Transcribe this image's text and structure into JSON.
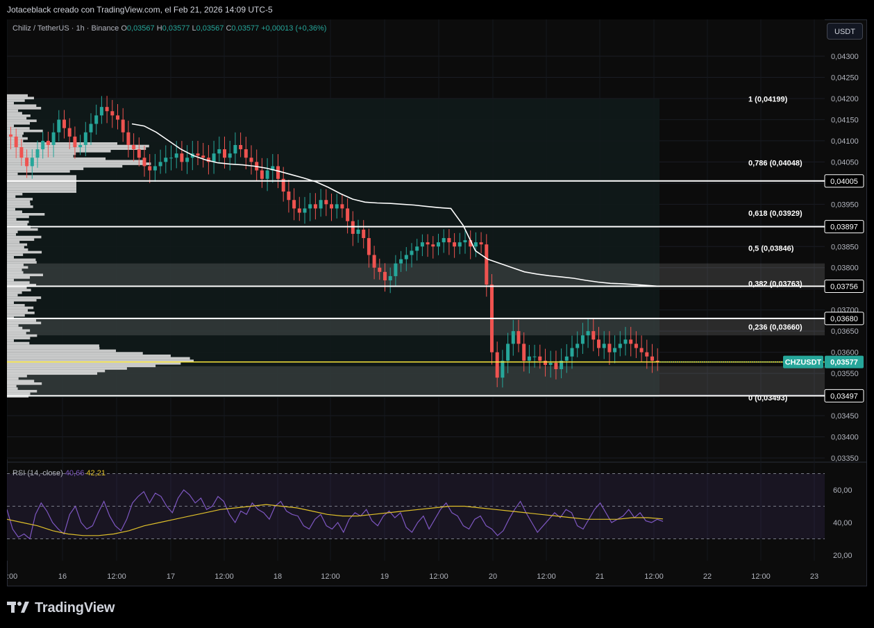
{
  "header": {
    "caption": "Jotaceblack creado con TradingView.com, el Feb 21, 2026 14:09 UTC-5"
  },
  "legend": {
    "symbol": "Chiliz / TetherUS · 1h · Binance",
    "o_label": "O",
    "o_value": "0,03567",
    "h_label": "H",
    "h_value": "0,03577",
    "l_label": "L",
    "l_value": "0,03567",
    "c_label": "C",
    "c_value": "0,03577",
    "change": "+0,00013 (+0,36%)"
  },
  "unit_button": "USDT",
  "rsi_legend": {
    "name": "RSI (14, close)",
    "rsi_value": "40,66",
    "ma_value": "42,21"
  },
  "footer": {
    "brand": "TradingView"
  },
  "colors": {
    "up": "#26a69a",
    "down": "#ef5350",
    "rsi": "#7e57c2",
    "rsi_ma": "#e0c12a",
    "price_line": "#ffeb3b",
    "symbol_tag": "#26a69a",
    "vwap": "#ffffff"
  },
  "chart_data": [
    {
      "type": "candlestick",
      "symbol_tag": "CHZUSDT",
      "last_price": "0,03577",
      "ylim": [
        0.0333,
        0.0435
      ],
      "y_ticks": [
        "0,04300",
        "0,04250",
        "0,04200",
        "0,04150",
        "0,04100",
        "0,04050",
        "0,04000",
        "0,03950",
        "0,03900",
        "0,03850",
        "0,03800",
        "0,03750",
        "0,03700",
        "0,03650",
        "0,03600",
        "0,03550",
        "0,03500",
        "0,03450",
        "0,03400",
        "0,03350"
      ],
      "x_ticks": [
        ":00",
        "16",
        "12:00",
        "17",
        "12:00",
        "18",
        "12:00",
        "19",
        "12:00",
        "20",
        "12:00",
        "21",
        "12:00",
        "22",
        "12:00",
        "23"
      ],
      "horizontal_levels": [
        {
          "value": 0.04005,
          "label": "0,04005"
        },
        {
          "value": 0.03897,
          "label": "0,03897"
        },
        {
          "value": 0.03756,
          "label": "0,03756"
        },
        {
          "value": 0.0368,
          "label": "0,03680"
        },
        {
          "value": 0.03497,
          "label": "0,03497"
        }
      ],
      "fibonacci": [
        {
          "ratio": "1",
          "label": "1 (0,04199)",
          "value": 0.04199
        },
        {
          "ratio": "0,786",
          "label": "0,786 (0,04048)",
          "value": 0.04048
        },
        {
          "ratio": "0,618",
          "label": "0,618 (0,03929)",
          "value": 0.03929
        },
        {
          "ratio": "0,5",
          "label": "0,5 (0,03846)",
          "value": 0.03846
        },
        {
          "ratio": "0,382",
          "label": "0,382 (0,03763)",
          "value": 0.03763
        },
        {
          "ratio": "0,236",
          "label": "0,236 (0,03660)",
          "value": 0.0366
        },
        {
          "ratio": "0",
          "label": "0 (0,03493)",
          "value": 0.03493
        }
      ],
      "zones": [
        {
          "from": 0.03756,
          "to": 0.0381
        },
        {
          "from": 0.0364,
          "to": 0.0368
        },
        {
          "from": 0.03497,
          "to": 0.03567
        }
      ],
      "candles_hourly_close": [
        0.0411,
        0.04085,
        0.0406,
        0.0404,
        0.0406,
        0.0408,
        0.041,
        0.0409,
        0.0412,
        0.0415,
        0.0413,
        0.0411,
        0.04085,
        0.0409,
        0.0412,
        0.0414,
        0.0416,
        0.0418,
        0.0417,
        0.0416,
        0.0415,
        0.0412,
        0.0409,
        0.0408,
        0.0406,
        0.0404,
        0.0403,
        0.0404,
        0.0405,
        0.0406,
        0.0406,
        0.0407,
        0.0405,
        0.0406,
        0.0407,
        0.04065,
        0.0406,
        0.0405,
        0.0407,
        0.0408,
        0.0406,
        0.0407,
        0.0409,
        0.0408,
        0.0406,
        0.0405,
        0.0403,
        0.0401,
        0.0403,
        0.0404,
        0.0401,
        0.0398,
        0.0396,
        0.0394,
        0.0393,
        0.0394,
        0.0395,
        0.0394,
        0.0396,
        0.0395,
        0.0394,
        0.0395,
        0.0394,
        0.0391,
        0.0388,
        0.0389,
        0.0387,
        0.0383,
        0.038,
        0.0379,
        0.0377,
        0.0378,
        0.0381,
        0.0382,
        0.0383,
        0.0384,
        0.0385,
        0.0386,
        0.03855,
        0.0385,
        0.0386,
        0.0387,
        0.0386,
        0.0385,
        0.0386,
        0.03865,
        0.0385,
        0.0386,
        0.03855,
        0.0376,
        0.036,
        0.0354,
        0.0358,
        0.0362,
        0.0365,
        0.0362,
        0.0358,
        0.0359,
        0.0359,
        0.0358,
        0.0357,
        0.03575,
        0.0356,
        0.0358,
        0.0359,
        0.0361,
        0.0362,
        0.0364,
        0.0365,
        0.0363,
        0.0361,
        0.0362,
        0.036,
        0.0361,
        0.0362,
        0.0363,
        0.0362,
        0.0361,
        0.036,
        0.0359,
        0.0358,
        0.03577
      ],
      "vwap": [
        0.0414,
        0.04135,
        0.0412,
        0.041,
        0.0408,
        0.04065,
        0.04055,
        0.04048,
        0.04045,
        0.04043,
        0.0404,
        0.04035,
        0.04028,
        0.0402,
        0.04012,
        0.04003,
        0.0399,
        0.03975,
        0.03962,
        0.03955,
        0.03953,
        0.03952,
        0.0395,
        0.03948,
        0.03945,
        0.03942,
        0.0394,
        0.039,
        0.0384,
        0.0382,
        0.0381,
        0.038,
        0.0379,
        0.03785,
        0.03781,
        0.03778,
        0.03775,
        0.0377,
        0.03766,
        0.03763,
        0.03762,
        0.0376,
        0.03758,
        0.03756
      ]
    },
    {
      "type": "line",
      "title": "RSI (14, close)",
      "ylim": [
        15,
        72
      ],
      "y_ticks": [
        "60,00",
        "40,00",
        "20,00"
      ],
      "levels": [
        70,
        50,
        30
      ],
      "series": [
        {
          "name": "RSI",
          "values": [
            48,
            36,
            31,
            33,
            30,
            45,
            52,
            47,
            40,
            36,
            33,
            45,
            50,
            40,
            36,
            38,
            46,
            53,
            44,
            38,
            35,
            42,
            52,
            56,
            59,
            52,
            58,
            56,
            50,
            46,
            55,
            60,
            57,
            52,
            55,
            48,
            50,
            56,
            53,
            45,
            40,
            47,
            45,
            52,
            48,
            46,
            42,
            50,
            53,
            47,
            45,
            44,
            38,
            36,
            42,
            45,
            38,
            36,
            40,
            34,
            42,
            46,
            44,
            48,
            41,
            38,
            44,
            47,
            43,
            46,
            37,
            34,
            40,
            44,
            36,
            42,
            48,
            52,
            46,
            44,
            38,
            36,
            42,
            44,
            38,
            36,
            32,
            35,
            42,
            48,
            53,
            46,
            40,
            34,
            38,
            42,
            46,
            43,
            48,
            46,
            38,
            36,
            42,
            48,
            52,
            46,
            40,
            42,
            44,
            48,
            43,
            46,
            41,
            40,
            42,
            40.66
          ]
        },
        {
          "name": "MA",
          "values": [
            42,
            40,
            38,
            35,
            33,
            32,
            32,
            33,
            35,
            38,
            40,
            42,
            44,
            46,
            48,
            49,
            50,
            51,
            50,
            49,
            47,
            45,
            44,
            44,
            45,
            46,
            47,
            48,
            49,
            50,
            50,
            49,
            48,
            47,
            46,
            45,
            44,
            43,
            42,
            42,
            42,
            43,
            43,
            42.21
          ]
        }
      ]
    }
  ]
}
